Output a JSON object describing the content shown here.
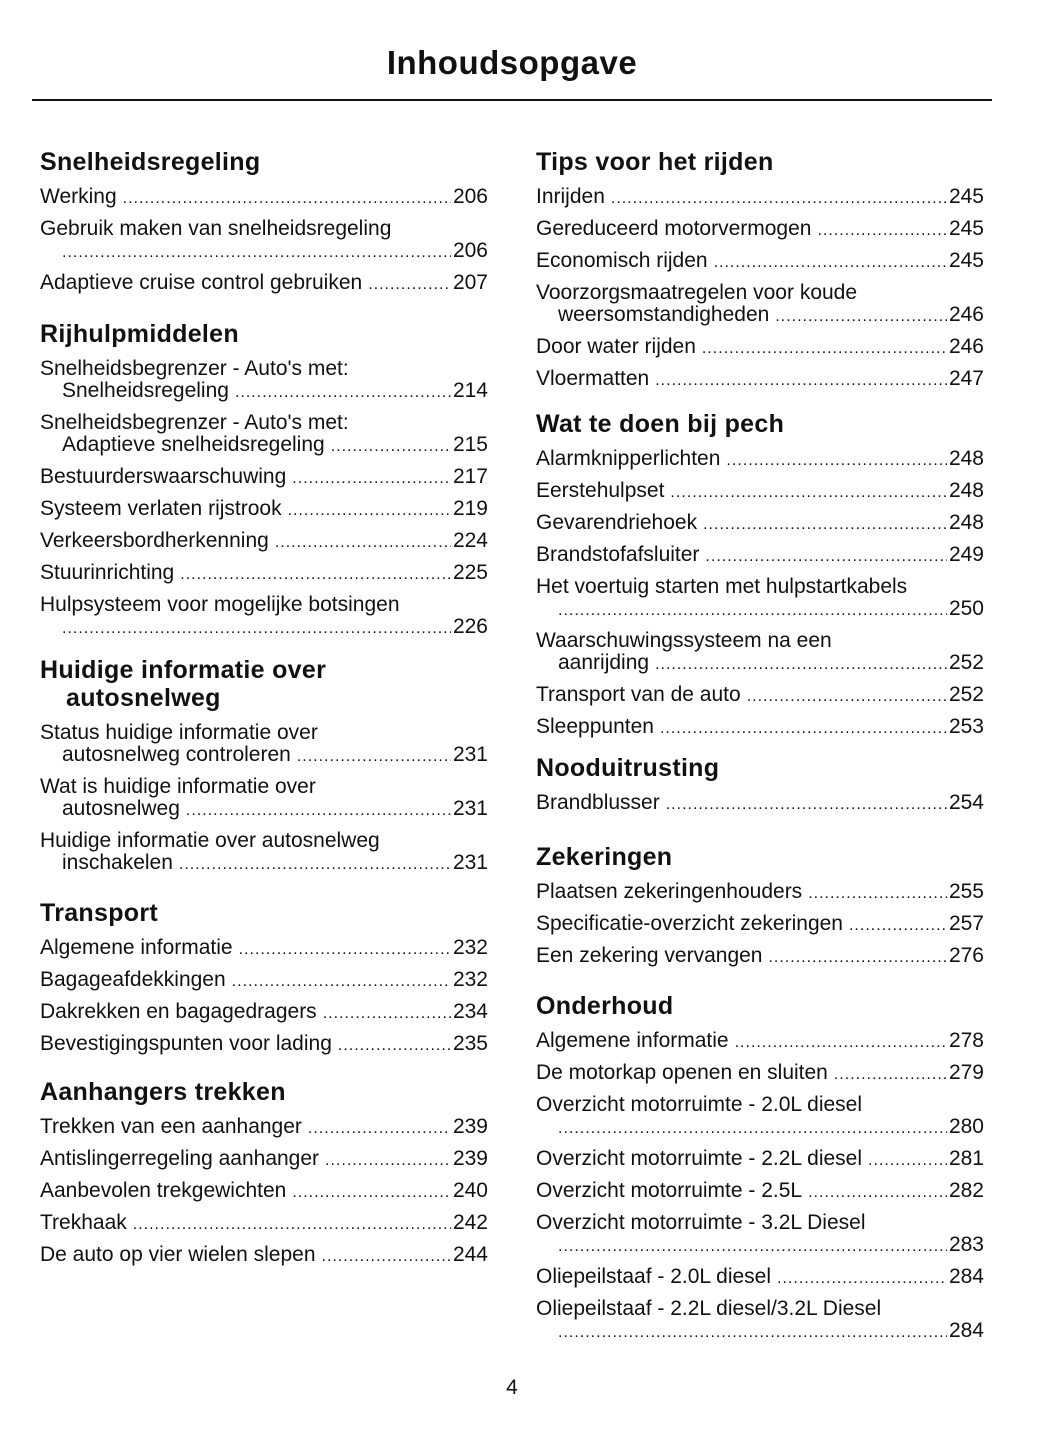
{
  "title": "Inhoudsopgave",
  "page_number": "4",
  "columns": [
    [
      {
        "heading": [
          "Snelheidsregeling"
        ],
        "entries": [
          {
            "text": "Werking",
            "page": "206"
          },
          {
            "text": "Gebruik maken van snelheidsregeling",
            "cont": "",
            "page": "206"
          },
          {
            "text": "Adaptieve cruise control gebruiken",
            "page": "207"
          }
        ]
      },
      {
        "heading": [
          "Rijhulpmiddelen"
        ],
        "entries": [
          {
            "text": "Snelheidsbegrenzer - Auto's met:",
            "cont": "Snelheidsregeling",
            "page": "214"
          },
          {
            "text": "Snelheidsbegrenzer - Auto's met:",
            "cont": "Adaptieve snelheidsregeling",
            "page": "215"
          },
          {
            "text": "Bestuurderswaarschuwing",
            "page": "217"
          },
          {
            "text": "Systeem verlaten rijstrook",
            "page": "219"
          },
          {
            "text": "Verkeersbordherkenning",
            "page": "224"
          },
          {
            "text": "Stuurinrichting",
            "page": "225"
          },
          {
            "text": "Hulpsysteem voor mogelijke botsingen",
            "cont": "",
            "page": "226"
          }
        ]
      },
      {
        "heading": [
          "Huidige informatie over",
          "autosnelweg"
        ],
        "entries": [
          {
            "text": "Status huidige informatie over",
            "cont": "autosnelweg controleren",
            "page": "231"
          },
          {
            "text": "Wat is huidige informatie over",
            "cont": "autosnelweg",
            "page": "231"
          },
          {
            "text": "Huidige informatie over autosnelweg",
            "cont": "inschakelen",
            "page": "231"
          }
        ]
      },
      {
        "heading": [
          "Transport"
        ],
        "entries": [
          {
            "text": "Algemene informatie",
            "page": "232"
          },
          {
            "text": "Bagageafdekkingen",
            "page": "232"
          },
          {
            "text": "Dakrekken en bagagedragers",
            "page": "234"
          },
          {
            "text": "Bevestigingspunten voor lading",
            "page": "235"
          }
        ]
      },
      {
        "heading": [
          "Aanhangers trekken"
        ],
        "entries": [
          {
            "text": "Trekken van een aanhanger",
            "page": "239"
          },
          {
            "text": "Antislingerregeling aanhanger",
            "page": "239"
          },
          {
            "text": "Aanbevolen trekgewichten",
            "page": "240"
          },
          {
            "text": "Trekhaak",
            "page": "242"
          },
          {
            "text": "De auto op vier wielen slepen",
            "page": "244"
          }
        ]
      }
    ],
    [
      {
        "heading": [
          "Tips voor het rijden"
        ],
        "entries": [
          {
            "text": "Inrijden",
            "page": "245"
          },
          {
            "text": "Gereduceerd motorvermogen",
            "page": "245"
          },
          {
            "text": "Economisch rijden",
            "page": "245"
          },
          {
            "text": "Voorzorgsmaatregelen voor koude",
            "cont": "weersomstandigheden",
            "page": "246"
          },
          {
            "text": "Door water rijden",
            "page": "246"
          },
          {
            "text": "Vloermatten",
            "page": "247"
          }
        ]
      },
      {
        "heading": [
          "Wat te doen bij pech"
        ],
        "entries": [
          {
            "text": "Alarmknipperlichten",
            "page": "248"
          },
          {
            "text": "Eerstehulpset",
            "page": "248"
          },
          {
            "text": "Gevarendriehoek",
            "page": "248"
          },
          {
            "text": "Brandstofafsluiter",
            "page": "249"
          },
          {
            "text": "Het voertuig starten met hulpstartkabels",
            "cont": "",
            "page": "250"
          },
          {
            "text": "Waarschuwingssysteem na een",
            "cont": "aanrijding",
            "page": "252"
          },
          {
            "text": "Transport van de auto",
            "page": "252"
          },
          {
            "text": "Sleeppunten",
            "page": "253"
          }
        ]
      },
      {
        "heading": [
          "Nooduitrusting"
        ],
        "entries": [
          {
            "text": "Brandblusser",
            "page": "254"
          }
        ]
      },
      {
        "heading": [
          "Zekeringen"
        ],
        "entries": [
          {
            "text": "Plaatsen zekeringenhouders",
            "page": "255"
          },
          {
            "text": "Specificatie-overzicht zekeringen",
            "page": "257"
          },
          {
            "text": "Een zekering vervangen",
            "page": "276"
          }
        ]
      },
      {
        "heading": [
          "Onderhoud"
        ],
        "entries": [
          {
            "text": "Algemene informatie",
            "page": "278"
          },
          {
            "text": "De motorkap openen en sluiten",
            "page": "279"
          },
          {
            "text": "Overzicht motorruimte - 2.0L diesel",
            "cont": "",
            "page": "280"
          },
          {
            "text": "Overzicht motorruimte - 2.2L diesel",
            "page": "281"
          },
          {
            "text": "Overzicht motorruimte - 2.5L",
            "page": "282"
          },
          {
            "text": "Overzicht motorruimte - 3.2L Diesel",
            "cont": "",
            "page": "283"
          },
          {
            "text": "Oliepeilstaaf - 2.0L diesel",
            "page": "284"
          },
          {
            "text": "Oliepeilstaaf - 2.2L diesel/3.2L Diesel",
            "cont": "",
            "page": "284"
          }
        ]
      }
    ]
  ]
}
